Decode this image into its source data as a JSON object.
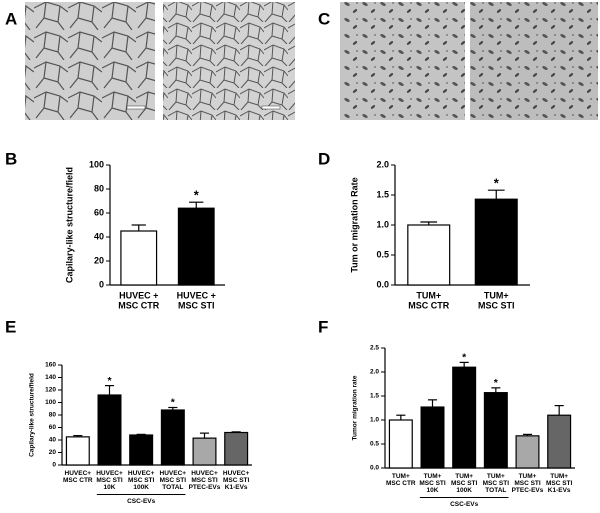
{
  "panels": [
    "A",
    "B",
    "C",
    "D",
    "E",
    "F"
  ],
  "chart_data": [
    {
      "type": "bar",
      "y_label": "Capilary-like structure/field",
      "categories": [
        [
          "HUVEC +",
          "MSC CTR"
        ],
        [
          "HUVEC +",
          "MSC STI"
        ]
      ],
      "values": [
        45,
        64
      ],
      "errors": [
        5,
        5
      ],
      "colors": [
        "#ffffff",
        "#000000"
      ],
      "markers": [
        null,
        "*"
      ],
      "ylim": [
        0,
        100
      ],
      "yticks": [
        0,
        20,
        40,
        60,
        80,
        100
      ]
    },
    {
      "type": "bar",
      "y_label": "Tum or migration Rate",
      "categories": [
        [
          "TUM+",
          "MSC CTR"
        ],
        [
          "TUM+",
          "MSC STI"
        ]
      ],
      "values": [
        1.0,
        1.43
      ],
      "errors": [
        0.05,
        0.15
      ],
      "colors": [
        "#ffffff",
        "#000000"
      ],
      "markers": [
        null,
        "*"
      ],
      "ylim": [
        0,
        2
      ],
      "yticks": [
        {
          "value": 0,
          "label": "0.0"
        },
        {
          "value": 0.5,
          "label": "0.5"
        },
        {
          "value": 1,
          "label": "1.0"
        },
        {
          "value": 1.5,
          "label": "1.5"
        },
        {
          "value": 2,
          "label": "2.0"
        }
      ]
    },
    {
      "type": "bar",
      "y_label": "Capilary-like structure/field",
      "categories": [
        [
          "HUVEC+",
          "MSC CTR"
        ],
        [
          "HUVEC+",
          "MSC STI",
          "10K"
        ],
        [
          "HUVEC+",
          "MSC STI",
          "100K"
        ],
        [
          "HUVEC+",
          "MSC STI",
          "TOTAL"
        ],
        [
          "HUVEC+",
          "MSC STI",
          "PTEC-EVs"
        ],
        [
          "HUVEC+",
          "MSC STI",
          "K1-EVs"
        ]
      ],
      "values": [
        45,
        112,
        48,
        88,
        43,
        52
      ],
      "errors": [
        2,
        15,
        1,
        4,
        8,
        1
      ],
      "colors": [
        "#ffffff",
        "#000000",
        "#000000",
        "#000000",
        "#a8a8a8",
        "#666666"
      ],
      "markers": [
        null,
        "*",
        null,
        "*",
        null,
        null
      ],
      "groups": [
        {
          "label": "CSC-EVs",
          "start": 1,
          "end": 3
        }
      ],
      "ylim": [
        0,
        160
      ],
      "yticks": [
        0,
        20,
        40,
        60,
        80,
        100,
        120,
        140,
        160
      ]
    },
    {
      "type": "bar",
      "y_label": "Tumor migration rate",
      "categories": [
        [
          "TUM+",
          "MSC CTR"
        ],
        [
          "TUM+",
          "MSC STI",
          "10K"
        ],
        [
          "TUM+",
          "MSC STI",
          "100K"
        ],
        [
          "TUM+",
          "MSC STI",
          "TOTAL"
        ],
        [
          "TUM+",
          "MSC STI",
          "PTEC-EVs"
        ],
        [
          "TUM+",
          "MSC STI",
          "K1-EVs"
        ]
      ],
      "values": [
        1.0,
        1.27,
        2.1,
        1.57,
        0.67,
        1.1
      ],
      "errors": [
        0.1,
        0.15,
        0.1,
        0.1,
        0.03,
        0.2
      ],
      "colors": [
        "#ffffff",
        "#000000",
        "#000000",
        "#000000",
        "#a8a8a8",
        "#666666"
      ],
      "markers": [
        null,
        null,
        "*",
        "*",
        null,
        null
      ],
      "groups": [
        {
          "label": "CSC-EVs",
          "start": 1,
          "end": 3
        }
      ],
      "ylim": [
        0,
        2.5
      ],
      "yticks": [
        {
          "value": 0,
          "label": "0.0"
        },
        {
          "value": 0.5,
          "label": "0.5"
        },
        {
          "value": 1,
          "label": "1.0"
        },
        {
          "value": 1.5,
          "label": "1.5"
        },
        {
          "value": 2,
          "label": "2.0"
        },
        {
          "value": 2.5,
          "label": "2.5"
        }
      ]
    }
  ]
}
